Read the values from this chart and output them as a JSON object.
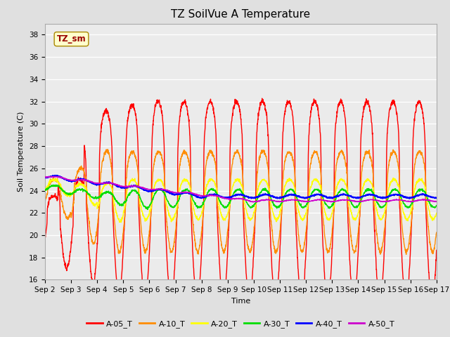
{
  "title": "TZ SoilVue A Temperature",
  "xlabel": "Time",
  "ylabel": "Soil Temperature (C)",
  "ylim": [
    16,
    39
  ],
  "yticks": [
    16,
    18,
    20,
    22,
    24,
    26,
    28,
    30,
    32,
    34,
    36,
    38
  ],
  "n_days": 15,
  "x_tick_labels": [
    "Sep 2",
    "Sep 3",
    "Sep 4",
    "Sep 5",
    "Sep 6",
    "Sep 7",
    "Sep 8",
    "Sep 9",
    "Sep 10",
    "Sep 11",
    "Sep 12",
    "Sep 13",
    "Sep 14",
    "Sep 15",
    "Sep 16",
    "Sep 17"
  ],
  "legend_labels": [
    "A-05_T",
    "A-10_T",
    "A-20_T",
    "A-30_T",
    "A-40_T",
    "A-50_T"
  ],
  "legend_colors": [
    "#FF0000",
    "#FF8C00",
    "#FFFF00",
    "#00DD00",
    "#0000FF",
    "#CC00CC"
  ],
  "annotation_text": "TZ_sm",
  "bg_color": "#E0E0E0",
  "plot_bg_color": "#EBEBEB",
  "grid_color": "#FFFFFF",
  "title_fontsize": 11,
  "label_fontsize": 8,
  "tick_fontsize": 7.5
}
